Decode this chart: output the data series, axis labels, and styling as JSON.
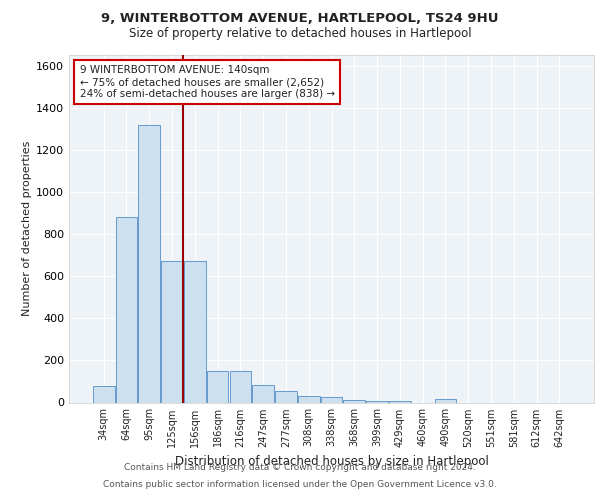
{
  "title_line1": "9, WINTERBOTTOM AVENUE, HARTLEPOOL, TS24 9HU",
  "title_line2": "Size of property relative to detached houses in Hartlepool",
  "xlabel": "Distribution of detached houses by size in Hartlepool",
  "ylabel": "Number of detached properties",
  "footer_line1": "Contains HM Land Registry data © Crown copyright and database right 2024.",
  "footer_line2": "Contains public sector information licensed under the Open Government Licence v3.0.",
  "bin_labels": [
    "34sqm",
    "64sqm",
    "95sqm",
    "125sqm",
    "156sqm",
    "186sqm",
    "216sqm",
    "247sqm",
    "277sqm",
    "308sqm",
    "338sqm",
    "368sqm",
    "399sqm",
    "429sqm",
    "460sqm",
    "490sqm",
    "520sqm",
    "551sqm",
    "581sqm",
    "612sqm",
    "642sqm"
  ],
  "bar_values": [
    80,
    880,
    1320,
    670,
    670,
    148,
    148,
    85,
    55,
    33,
    26,
    10,
    8,
    8,
    0,
    18,
    0,
    0,
    0,
    0,
    0
  ],
  "bar_color": "#cce0f0",
  "bar_edge_color": "#6699cc",
  "ylim": [
    0,
    1650
  ],
  "yticks": [
    0,
    200,
    400,
    600,
    800,
    1000,
    1200,
    1400,
    1600
  ],
  "vline_color": "#990000",
  "vline_x": 3.5,
  "annotation_text": "9 WINTERBOTTOM AVENUE: 140sqm\n← 75% of detached houses are smaller (2,652)\n24% of semi-detached houses are larger (838) →",
  "background_color": "#ffffff",
  "plot_bg_color": "#eef3f8",
  "grid_color": "#ffffff"
}
